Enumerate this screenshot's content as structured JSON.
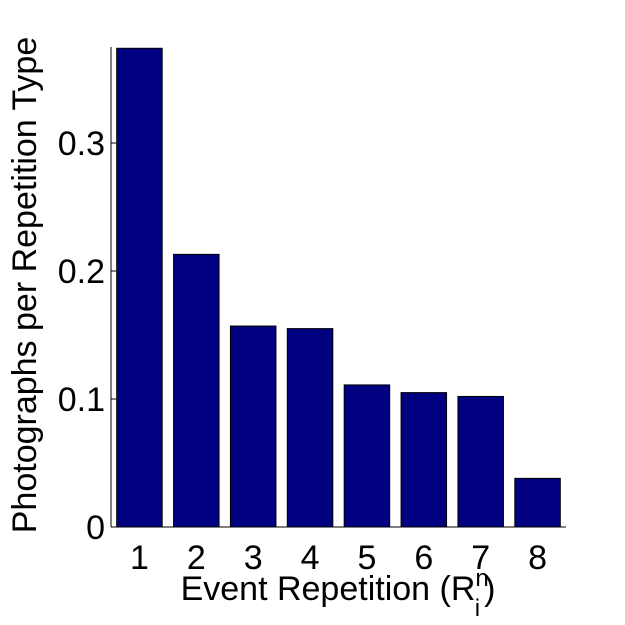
{
  "chart_data": {
    "type": "bar",
    "xlabel": {
      "text": "Event Repetition (R",
      "superscript": "n",
      "subscript": "i",
      "suffix": ")"
    },
    "ylabel": "Photographs per Repetition Type",
    "categories": [
      "1",
      "2",
      "3",
      "4",
      "5",
      "6",
      "7",
      "8"
    ],
    "values": [
      0.374,
      0.213,
      0.157,
      0.155,
      0.111,
      0.105,
      0.102,
      0.038
    ],
    "color": "#000080",
    "ylim": [
      0,
      0.375
    ],
    "yticks": [
      0,
      0.1,
      0.2,
      0.3
    ]
  }
}
